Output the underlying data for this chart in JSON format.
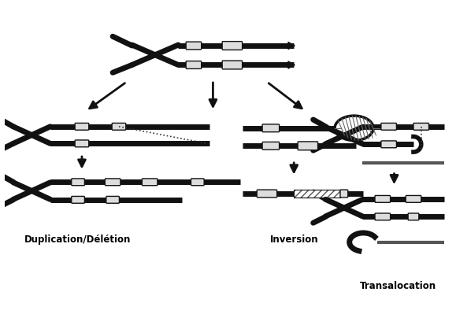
{
  "bg_color": "#ffffff",
  "labels": {
    "dup_del": "Duplication/Délétion",
    "inversion": "Inversion",
    "transalocation": "Transalocation"
  },
  "chrom_color": "#111111",
  "chrom_lw": 5,
  "marker_color": "#dddddd",
  "marker_edge": "#111111"
}
